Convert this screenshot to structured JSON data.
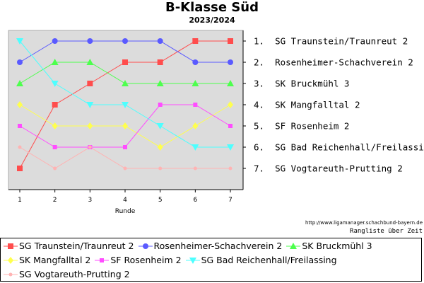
{
  "chart_data": {
    "type": "line",
    "title": "B-Klasse Süd",
    "subtitle": "2023/2024",
    "xlabel": "Runde",
    "ylabel": "",
    "x": [
      1,
      2,
      3,
      4,
      5,
      6,
      7
    ],
    "xlim": [
      1,
      7
    ],
    "ylim": [
      1,
      7
    ],
    "y_inverted": true,
    "grid": false,
    "legend_position": "bottom",
    "right_labels": [
      "1.  SG Traunstein/Traunreut 2",
      "2.  Rosenheimer-Schachverein 2",
      "3.  SK Bruckmühl 3",
      "4.  SK Mangfalltal 2",
      "5.  SF Rosenheim 2",
      "6.  SG Bad Reichenhall/Freilassing",
      "7.  SG Vogtareuth-Prutting 2"
    ],
    "series": [
      {
        "name": "SG Traunstein/Traunreut 2",
        "color": "#ff4d4d",
        "marker": "square",
        "values": [
          7,
          4,
          3,
          2,
          2,
          1,
          1
        ]
      },
      {
        "name": "Rosenheimer-Schachverein 2",
        "color": "#5a5aff",
        "marker": "circle",
        "values": [
          2,
          1,
          1,
          1,
          1,
          2,
          2
        ]
      },
      {
        "name": "SK Bruckmühl 3",
        "color": "#4dff4d",
        "marker": "triangle-up",
        "values": [
          3,
          2,
          2,
          3,
          3,
          3,
          3
        ]
      },
      {
        "name": "SK Mangfalltal 2",
        "color": "#ffff4d",
        "marker": "diamond",
        "values": [
          4,
          5,
          5,
          5,
          6,
          5,
          4
        ]
      },
      {
        "name": "SF Rosenheim 2",
        "color": "#ff4dff",
        "marker": "square-small",
        "values": [
          5,
          6,
          6,
          6,
          4,
          4,
          5
        ]
      },
      {
        "name": "SG Bad Reichenhall/Freilassing",
        "color": "#4dffff",
        "marker": "triangle-down",
        "values": [
          1,
          3,
          4,
          4,
          5,
          6,
          6
        ]
      },
      {
        "name": "SG Vogtareuth-Prutting 2",
        "color": "#ffb3b3",
        "marker": "circle-small",
        "values": [
          6,
          7,
          6,
          7,
          7,
          7,
          7
        ]
      }
    ]
  },
  "footer": {
    "source_url": "http://www.ligamanager.schachbund-bayern.de",
    "caption": "Rangliste über Zeit"
  }
}
